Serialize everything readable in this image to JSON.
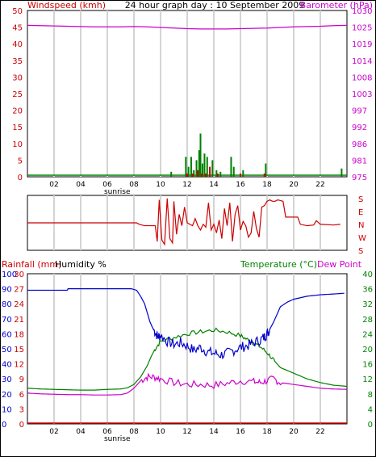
{
  "colors": {
    "wind": "#cc0000",
    "gust": "#008000",
    "baro": "#cc00cc",
    "direction": "#cc0000",
    "humidity": "#0000cc",
    "temperature": "#008000",
    "dewpoint": "#cc00cc",
    "rain": "#cc0000",
    "grid": "#d4d4d4",
    "axis_text": "#000000"
  },
  "chart_data": [
    {
      "type": "bar",
      "title": "24 hour graph day : 10 September 2009",
      "ylabel_left": "Windspeed (kmh)",
      "ylabel_right": "Barometer (hPa)",
      "x_ticks": [
        "02",
        "04",
        "06",
        "08",
        "10",
        "12",
        "14",
        "16",
        "18",
        "20",
        "22"
      ],
      "x_tick_hours": [
        2,
        4,
        6,
        8,
        10,
        12,
        14,
        16,
        18,
        20,
        22
      ],
      "sunrise_label": "sunrise",
      "sunrise_hour": 6.5,
      "xlim": [
        0,
        24
      ],
      "ylim_left": [
        0,
        50
      ],
      "y_ticks_left": [
        "0",
        "5",
        "10",
        "15",
        "20",
        "25",
        "30",
        "35",
        "40",
        "45",
        "50"
      ],
      "ylim_right": [
        975,
        1030
      ],
      "y_ticks_right": [
        "975",
        "981",
        "986",
        "992",
        "997",
        "1003",
        "1008",
        "1014",
        "1019",
        "1025",
        "1030"
      ],
      "y_ticks_right_values": [
        975,
        980.5,
        986,
        991.5,
        997,
        1002.5,
        1008,
        1013.5,
        1019,
        1024.5,
        1030
      ],
      "barometer": {
        "x": [
          0,
          1,
          2,
          3,
          4,
          5,
          6,
          7,
          8,
          9,
          10,
          11,
          12,
          13,
          14,
          15,
          16,
          17,
          18,
          19,
          20,
          21,
          22,
          23,
          24
        ],
        "y": [
          1025.1,
          1025.0,
          1024.9,
          1024.8,
          1024.7,
          1024.6,
          1024.6,
          1024.6,
          1024.7,
          1024.6,
          1024.4,
          1024.2,
          1024.0,
          1023.9,
          1023.9,
          1023.9,
          1024.0,
          1024.1,
          1024.2,
          1024.4,
          1024.6,
          1024.7,
          1024.8,
          1025.0,
          1025.1
        ]
      },
      "gust_bars": {
        "x": [
          10.8,
          11.9,
          12.1,
          12.3,
          12.5,
          12.7,
          12.9,
          13.0,
          13.15,
          13.3,
          13.5,
          13.7,
          13.9,
          14.2,
          14.5,
          15.3,
          15.5,
          16.2,
          17.9,
          23.6
        ],
        "y": [
          1.5,
          6,
          3,
          6,
          2,
          5,
          8,
          13,
          4,
          7,
          6,
          2,
          5,
          2,
          1.5,
          6,
          3,
          2,
          4,
          2.5
        ]
      },
      "wind_bars": {
        "x": [
          12.0,
          12.4,
          12.8,
          13.1,
          13.4,
          13.7,
          14.3,
          16.0,
          17.8
        ],
        "y": [
          1,
          1,
          2,
          1,
          1,
          3,
          1,
          1,
          1
        ]
      },
      "baseline_wind_kmh": 0.5
    },
    {
      "type": "line",
      "ylabel_right_ticks": [
        "S",
        "E",
        "N",
        "W",
        "S"
      ],
      "ylim": [
        0,
        360
      ],
      "xlim": [
        0,
        24
      ],
      "wind_direction": {
        "x": [
          0,
          8.2,
          8.4,
          8.8,
          9.6,
          9.75,
          9.9,
          10.1,
          10.3,
          10.5,
          10.7,
          10.9,
          11.0,
          11.2,
          11.4,
          11.6,
          11.8,
          12.0,
          12.2,
          12.4,
          12.6,
          12.8,
          13.0,
          13.2,
          13.4,
          13.6,
          13.8,
          14.0,
          14.2,
          14.4,
          14.6,
          14.8,
          15.0,
          15.2,
          15.4,
          15.6,
          15.8,
          16.0,
          16.2,
          16.4,
          16.6,
          16.8,
          17.0,
          17.2,
          17.4,
          17.6,
          17.8,
          18.0,
          18.2,
          18.4,
          18.6,
          18.8,
          19.2,
          19.4,
          19.6,
          20.3,
          20.5,
          21.0,
          21.5,
          21.7,
          22.0,
          23.0,
          23.5
        ],
        "y": [
          180,
          180,
          190,
          200,
          200,
          310,
          20,
          300,
          330,
          10,
          290,
          320,
          30,
          260,
          120,
          200,
          70,
          180,
          190,
          200,
          150,
          200,
          230,
          190,
          210,
          40,
          230,
          190,
          250,
          160,
          290,
          80,
          200,
          40,
          310,
          120,
          60,
          230,
          170,
          200,
          280,
          250,
          100,
          220,
          280,
          70,
          60,
          30,
          20,
          30,
          30,
          20,
          30,
          140,
          140,
          140,
          190,
          200,
          195,
          165,
          190,
          195,
          190
        ]
      }
    },
    {
      "type": "line",
      "ylabel_left": "Rainfall (mm)",
      "ylabel_left2": "Humidity %",
      "ylabel_right": "Temperature (°C)",
      "ylabel_right2": "Dew Point",
      "xlim": [
        0,
        24
      ],
      "x_ticks": [
        "02",
        "04",
        "06",
        "08",
        "10",
        "12",
        "14",
        "16",
        "18",
        "20",
        "22"
      ],
      "x_tick_hours": [
        2,
        4,
        6,
        8,
        10,
        12,
        14,
        16,
        18,
        20,
        22
      ],
      "sunrise_label": "sunrise",
      "sunrise_hour": 6.5,
      "ylim_humidity": [
        0,
        100
      ],
      "y_ticks_humidity": [
        "0",
        "10",
        "20",
        "30",
        "40",
        "50",
        "60",
        "70",
        "80",
        "90",
        "100"
      ],
      "ylim_rain": [
        0,
        30
      ],
      "y_ticks_rain": [
        "0",
        "3",
        "6",
        "9",
        "12",
        "15",
        "18",
        "21",
        "24",
        "27",
        "30"
      ],
      "ylim_temp": [
        0,
        40
      ],
      "y_ticks_temp": [
        "0",
        "4",
        "8",
        "12",
        "16",
        "20",
        "24",
        "28",
        "32",
        "36",
        "40"
      ],
      "humidity": {
        "x": [
          0,
          1,
          2,
          3,
          3.05,
          4,
          5,
          6,
          7,
          7.8,
          8.2,
          8.5,
          8.8,
          9.0,
          9.2,
          9.4,
          9.6,
          9.8,
          10.0,
          10.5,
          11.0,
          11.5,
          12.0,
          12.5,
          13.0,
          13.5,
          14.0,
          14.5,
          15.0,
          15.5,
          16.0,
          16.5,
          17.0,
          17.5,
          17.8,
          18.0,
          18.2,
          18.5,
          18.8,
          19.0,
          19.5,
          20.0,
          21.0,
          22.0,
          23.0,
          23.8
        ],
        "y": [
          89,
          89,
          89,
          89,
          90,
          90,
          90,
          90,
          90,
          90,
          89,
          85,
          80,
          74,
          68,
          64,
          61,
          58,
          59,
          55,
          53,
          54,
          52,
          49,
          51,
          48,
          47,
          46,
          47,
          49,
          51,
          52,
          54,
          56,
          58,
          60,
          63,
          68,
          74,
          78,
          81,
          83,
          85,
          86,
          86.5,
          87
        ]
      },
      "temperature": {
        "x": [
          0,
          1,
          2,
          3,
          4,
          5,
          6,
          7,
          7.5,
          8,
          8.5,
          9,
          9.3,
          9.6,
          10,
          11,
          12,
          13,
          14,
          15,
          16,
          16.5,
          17,
          17.5,
          18,
          18.5,
          19,
          20,
          21,
          22,
          23,
          24
        ],
        "y": [
          9.5,
          9.3,
          9.2,
          9.1,
          9.0,
          9.0,
          9.2,
          9.3,
          9.6,
          10.5,
          12.5,
          15.5,
          18,
          20,
          22,
          23,
          24,
          24.5,
          25,
          24.5,
          23.5,
          22.5,
          21.5,
          20.5,
          19.0,
          17,
          15,
          13.5,
          12,
          11,
          10.3,
          10
        ]
      },
      "dewpoint": {
        "x": [
          0,
          1,
          2,
          3,
          4,
          5,
          6,
          7,
          7.5,
          8,
          8.5,
          9,
          9.5,
          10,
          11,
          12,
          13,
          14,
          15,
          16,
          17,
          17.5,
          18,
          18.5,
          19,
          20,
          21,
          22,
          23,
          24
        ],
        "y": [
          8.2,
          8.0,
          7.9,
          7.8,
          7.8,
          7.7,
          7.7,
          7.8,
          8.2,
          9.5,
          11.5,
          12.5,
          12.5,
          12,
          11,
          10.5,
          10.5,
          10.3,
          10.8,
          11.5,
          11.2,
          11.0,
          11.5,
          12,
          11,
          10.5,
          10,
          9.5,
          9.3,
          9.2
        ]
      },
      "rainfall": {
        "x": [
          0,
          24
        ],
        "y": [
          0,
          0
        ]
      }
    }
  ]
}
